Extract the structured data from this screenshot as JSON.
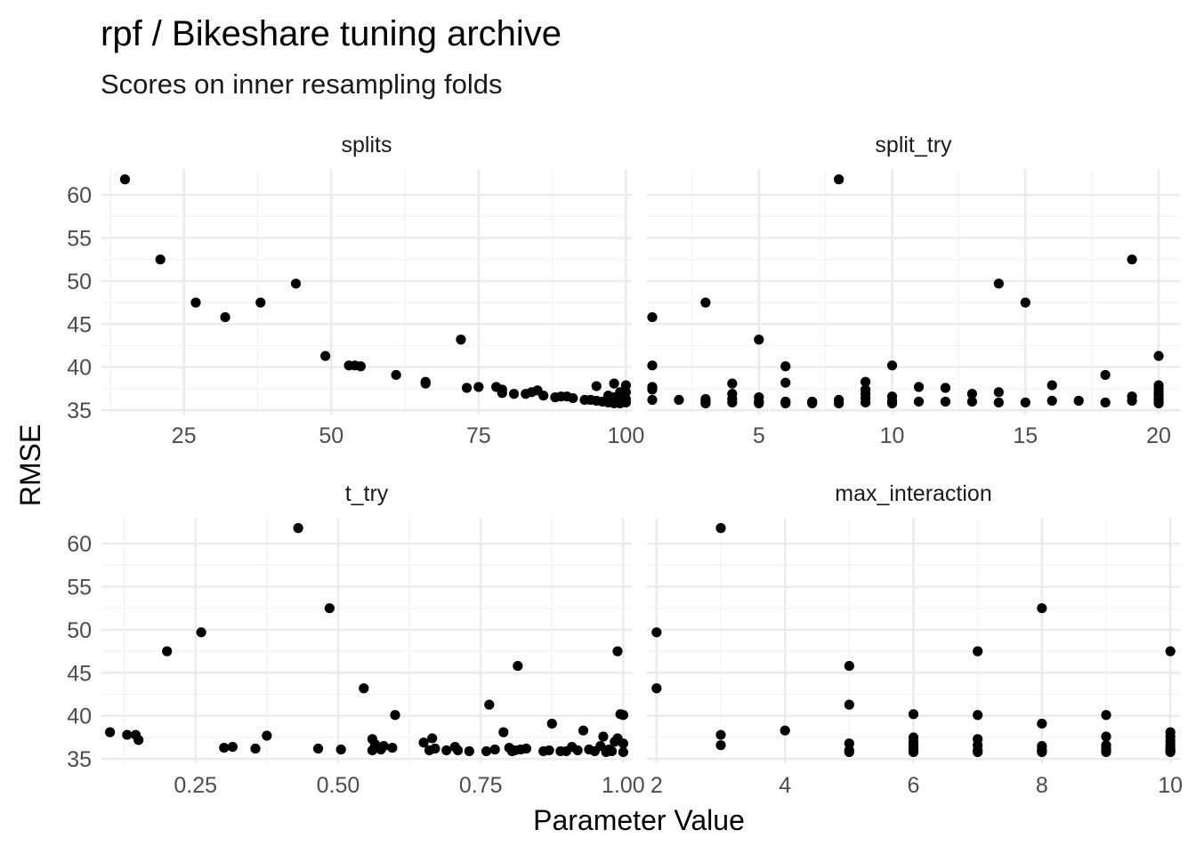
{
  "title": "rpf / Bikeshare tuning archive",
  "subtitle": "Scores on inner resampling folds",
  "xlabel": "Parameter Value",
  "ylabel": "RMSE",
  "chart_data": {
    "type": "scatter",
    "layout": "facet-wrap-2x2",
    "shared_y": true,
    "ylim": [
      34.5,
      63
    ],
    "yticks": [
      35,
      40,
      45,
      50,
      55,
      60
    ],
    "ytick_labels": [
      "35",
      "40",
      "45",
      "50",
      "55",
      "60"
    ],
    "grid": true,
    "point_color": "#000000",
    "panels": [
      {
        "name": "splits",
        "xlim": [
          11,
          101
        ],
        "xticks": [
          25,
          50,
          75,
          100
        ],
        "xtick_labels": [
          "25",
          "50",
          "75",
          "100"
        ],
        "x": [
          15,
          21,
          27,
          32,
          38,
          44,
          49,
          53,
          54,
          55,
          61,
          66,
          66,
          72,
          73,
          75,
          78,
          79,
          79,
          81,
          83,
          84,
          85,
          86,
          88,
          89,
          90,
          91,
          93,
          94,
          95,
          95,
          96,
          97,
          97,
          97,
          98,
          98,
          98,
          99,
          99,
          99,
          99,
          100,
          100,
          100,
          100
        ],
        "y": [
          61.8,
          52.5,
          47.5,
          45.8,
          47.5,
          49.7,
          41.3,
          40.2,
          40.2,
          40.1,
          39.1,
          38.3,
          38.1,
          43.2,
          37.6,
          37.7,
          37.7,
          37.4,
          37.0,
          36.9,
          36.9,
          37.1,
          37.3,
          36.7,
          36.5,
          36.6,
          36.6,
          36.4,
          36.2,
          36.2,
          37.8,
          36.1,
          36.0,
          36.7,
          36.3,
          35.9,
          38.1,
          36.5,
          35.8,
          37.1,
          36.4,
          36.0,
          35.8,
          37.9,
          37.1,
          36.3,
          35.9
        ]
      },
      {
        "name": "split_try",
        "xlim": [
          0.8,
          20.8
        ],
        "xticks": [
          5,
          10,
          15,
          20
        ],
        "xtick_labels": [
          "5",
          "10",
          "15",
          "20"
        ],
        "x": [
          1,
          1,
          1,
          1,
          1,
          2,
          3,
          3,
          3,
          3,
          4,
          4,
          4,
          4,
          5,
          5,
          5,
          5,
          6,
          6,
          6,
          6,
          7,
          7,
          8,
          8,
          8,
          9,
          9,
          9,
          9,
          9,
          10,
          10,
          10,
          10,
          11,
          11,
          12,
          12,
          13,
          13,
          14,
          14,
          14,
          15,
          15,
          16,
          16,
          17,
          18,
          18,
          19,
          19,
          19,
          20,
          20,
          20,
          20,
          20,
          20,
          20,
          20
        ],
        "y": [
          45.8,
          40.2,
          37.7,
          37.4,
          36.2,
          36.2,
          47.5,
          36.3,
          36.0,
          35.8,
          38.1,
          36.9,
          36.3,
          35.9,
          43.2,
          36.5,
          36.0,
          35.8,
          40.1,
          38.2,
          36.0,
          35.8,
          36.0,
          35.8,
          61.8,
          36.2,
          35.8,
          38.3,
          37.4,
          36.9,
          36.4,
          35.9,
          40.2,
          36.6,
          36.1,
          35.8,
          37.7,
          36.0,
          37.6,
          36.0,
          36.9,
          36.0,
          49.7,
          37.1,
          35.9,
          47.5,
          35.9,
          37.9,
          36.1,
          36.1,
          39.1,
          35.9,
          52.5,
          36.6,
          36.1,
          41.3,
          37.9,
          37.5,
          37.1,
          36.8,
          36.4,
          36.1,
          35.8
        ]
      },
      {
        "name": "t_try",
        "xlim": [
          0.085,
          1.015
        ],
        "xticks": [
          0.25,
          0.5,
          0.75,
          1.0
        ],
        "xtick_labels": [
          "0.25",
          "0.50",
          "0.75",
          "1.00"
        ],
        "x": [
          0.1,
          0.13,
          0.145,
          0.15,
          0.2,
          0.26,
          0.3,
          0.315,
          0.355,
          0.375,
          0.43,
          0.465,
          0.485,
          0.505,
          0.545,
          0.56,
          0.56,
          0.565,
          0.575,
          0.58,
          0.595,
          0.6,
          0.65,
          0.66,
          0.665,
          0.67,
          0.69,
          0.705,
          0.71,
          0.73,
          0.76,
          0.765,
          0.775,
          0.79,
          0.8,
          0.805,
          0.81,
          0.815,
          0.82,
          0.83,
          0.86,
          0.87,
          0.875,
          0.89,
          0.9,
          0.91,
          0.92,
          0.93,
          0.94,
          0.95,
          0.96,
          0.965,
          0.97,
          0.975,
          0.98,
          0.985,
          0.99,
          0.99,
          0.995,
          1.0,
          1.0,
          1.0
        ],
        "y": [
          38.1,
          37.8,
          37.8,
          37.2,
          47.5,
          49.7,
          36.3,
          36.4,
          36.2,
          37.7,
          61.8,
          36.2,
          52.5,
          36.1,
          43.2,
          37.3,
          36.0,
          36.7,
          36.1,
          36.5,
          36.3,
          40.1,
          36.9,
          36.0,
          37.4,
          36.2,
          36.0,
          36.4,
          36.0,
          35.9,
          35.9,
          41.3,
          36.1,
          38.1,
          36.3,
          35.9,
          36.0,
          45.8,
          36.1,
          36.2,
          35.9,
          36.0,
          39.1,
          35.9,
          35.9,
          36.4,
          36.0,
          38.3,
          36.1,
          35.9,
          36.5,
          37.6,
          35.8,
          36.1,
          35.9,
          37.0,
          47.5,
          37.4,
          40.2,
          40.1,
          36.8,
          35.8
        ]
      },
      {
        "name": "max_interaction",
        "xlim": [
          1.85,
          10.15
        ],
        "xticks": [
          2,
          4,
          6,
          8,
          10
        ],
        "xtick_labels": [
          "2",
          "4",
          "6",
          "8",
          "10"
        ],
        "x": [
          2,
          2,
          3,
          3,
          3,
          4,
          5,
          5,
          5,
          5,
          5,
          6,
          6,
          6,
          6,
          6,
          6,
          6,
          6,
          7,
          7,
          7,
          7,
          7,
          7,
          8,
          8,
          8,
          8,
          8,
          8,
          9,
          9,
          9,
          9,
          9,
          9,
          10,
          10,
          10,
          10,
          10,
          10,
          10,
          10,
          10
        ],
        "y": [
          49.7,
          43.2,
          61.8,
          37.8,
          36.6,
          38.3,
          45.8,
          41.3,
          36.8,
          36.0,
          35.8,
          40.2,
          37.5,
          37.0,
          36.6,
          36.2,
          36.0,
          35.9,
          35.8,
          47.5,
          40.1,
          37.3,
          36.6,
          36.0,
          35.8,
          52.5,
          39.1,
          36.5,
          36.1,
          35.9,
          35.8,
          40.1,
          37.6,
          36.6,
          36.2,
          35.9,
          35.8,
          47.5,
          38.1,
          37.6,
          37.1,
          36.7,
          36.3,
          36.0,
          35.9,
          35.8
        ]
      }
    ]
  }
}
